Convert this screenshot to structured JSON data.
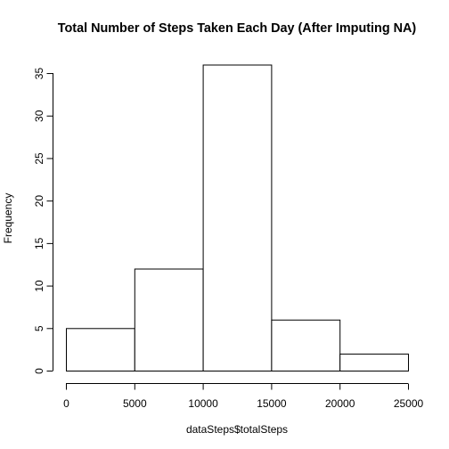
{
  "chart_data": {
    "type": "bar",
    "title": "Total Number of Steps Taken Each Day (After Imputing NA)",
    "xlabel": "dataSteps$totalSteps",
    "ylabel": "Frequency",
    "bins": [
      {
        "start": 0,
        "end": 5000,
        "count": 5
      },
      {
        "start": 5000,
        "end": 10000,
        "count": 12
      },
      {
        "start": 10000,
        "end": 15000,
        "count": 36
      },
      {
        "start": 15000,
        "end": 20000,
        "count": 6
      },
      {
        "start": 20000,
        "end": 25000,
        "count": 2
      }
    ],
    "xlim": [
      0,
      25000
    ],
    "ylim": [
      0,
      36
    ],
    "xticks": [
      0,
      5000,
      10000,
      15000,
      20000,
      25000
    ],
    "yticks": [
      0,
      5,
      10,
      15,
      20,
      25,
      30,
      35
    ],
    "grid": false
  }
}
